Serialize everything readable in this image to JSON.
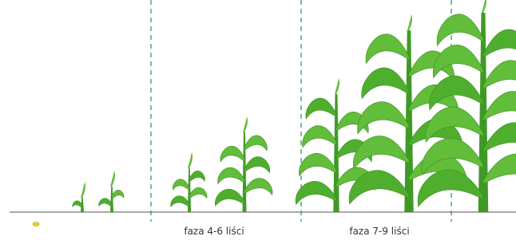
{
  "stages": [
    {
      "label": "faza 4-6 liści"
    },
    {
      "label": "faza 7-9 liści"
    }
  ]
}
